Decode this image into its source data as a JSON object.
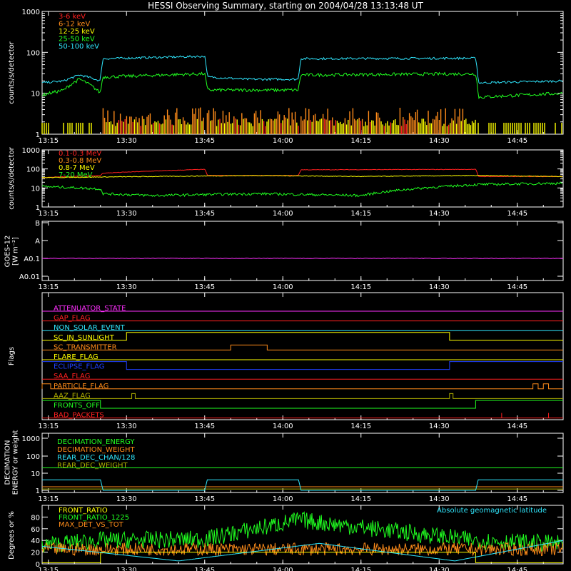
{
  "title": "HESSI Observing Summary, starting on 2004/04/28 13:13:48 UT",
  "time_ticks": [
    "13:15",
    "13:30",
    "13:45",
    "14:00",
    "14:15",
    "14:30",
    "14:45"
  ],
  "colors": {
    "background": "#000000",
    "axis": "#ffffff",
    "red": "#ff2020",
    "orange": "#ff8c1a",
    "yellow": "#ffff00",
    "green": "#20ff20",
    "cyan": "#30e8ff",
    "magenta": "#ff30ff",
    "blue": "#2040ff",
    "olive": "#b0b000"
  },
  "chart_data": [
    {
      "type": "line",
      "name": "light-curves-low",
      "ylabel": "counts/s/detector",
      "yscale": "log",
      "ylim": [
        1,
        1000
      ],
      "yticks": [
        "1",
        "10",
        "100",
        "1000"
      ],
      "x_range": [
        "13:13:48",
        "14:53:48"
      ],
      "legend": [
        "3-6 keV",
        "6-12 keV",
        "12-25 keV",
        "25-50 keV",
        "50-100 keV"
      ],
      "legend_colors": [
        "#ff2020",
        "#ff8c1a",
        "#ffff00",
        "#20ff20",
        "#30e8ff"
      ],
      "series": [
        {
          "name": "50-100 keV",
          "x": [
            "13:13:48",
            "13:18",
            "13:21",
            "13:25",
            "13:25:30",
            "13:45",
            "13:45:30",
            "13:53",
            "14:03",
            "14:03:30",
            "14:37",
            "14:37:30",
            "14:53:48"
          ],
          "values": [
            18,
            20,
            28,
            20,
            70,
            80,
            25,
            22,
            22,
            70,
            72,
            18,
            20
          ]
        },
        {
          "name": "25-50 keV",
          "x": [
            "13:13:48",
            "13:18",
            "13:21",
            "13:25",
            "13:25:30",
            "13:45",
            "13:45:30",
            "13:53",
            "14:03",
            "14:03:30",
            "14:37",
            "14:37:30",
            "14:53:48"
          ],
          "values": [
            9,
            12,
            22,
            10,
            25,
            30,
            12,
            12,
            12,
            28,
            30,
            8,
            10
          ]
        }
      ]
    },
    {
      "type": "line",
      "name": "light-curves-high",
      "ylabel": "counts/s/detector",
      "yscale": "log",
      "ylim": [
        1,
        1000
      ],
      "yticks": [
        "1",
        "10",
        "100",
        "1000"
      ],
      "legend": [
        "0.1-0.3 MeV",
        "0.3-0.8 MeV",
        "0.8-7 MeV",
        "7-20 MeV"
      ],
      "legend_colors": [
        "#ff2020",
        "#ff8c1a",
        "#ffff00",
        "#20ff20"
      ],
      "series": [
        {
          "name": "0.1-0.3 MeV",
          "x": [
            "13:13:48",
            "13:25",
            "13:25:30",
            "13:45",
            "13:45:30",
            "14:03",
            "14:03:30",
            "14:37",
            "14:37:30",
            "14:53:48"
          ],
          "values": [
            35,
            45,
            60,
            95,
            45,
            45,
            90,
            95,
            40,
            40
          ]
        },
        {
          "name": "0.8-7 MeV",
          "x": [
            "13:13:48",
            "13:35",
            "13:55",
            "14:15",
            "14:37",
            "14:53:48"
          ],
          "values": [
            35,
            40,
            45,
            40,
            45,
            40
          ]
        },
        {
          "name": "7-20 MeV",
          "x": [
            "13:13:48",
            "13:25",
            "13:25:30",
            "13:35",
            "13:55",
            "14:15",
            "14:37",
            "14:53:48"
          ],
          "values": [
            12,
            9,
            5,
            4,
            5,
            4,
            15,
            18
          ]
        }
      ]
    },
    {
      "type": "line",
      "name": "goes",
      "ylabel_lines": [
        "GOES-12",
        "[W m⁻²]"
      ],
      "yscale": "log",
      "ytick_labels": [
        "A0.01",
        "A0.1",
        "A",
        "B"
      ],
      "series": [
        {
          "name": "",
          "x": [
            "13:13:48",
            "14:53:48"
          ],
          "values": [
            "A0.1",
            "A0.1"
          ]
        }
      ]
    },
    {
      "type": "line",
      "name": "flags",
      "ylabel": "Flags",
      "flags": [
        {
          "label": "ATTENUATOR_STATE",
          "color": "#ff30ff"
        },
        {
          "label": "GAP_FLAG",
          "color": "#ff2020"
        },
        {
          "label": "NON_SOLAR_EVENT",
          "color": "#30e8ff"
        },
        {
          "label": "SC_IN_SUNLIGHT",
          "color": "#ffff00"
        },
        {
          "label": "SC_TRANSMITTER",
          "color": "#ff8c1a"
        },
        {
          "label": "FLARE_FLAG",
          "color": "#ffff00"
        },
        {
          "label": "ECLIPSE_FLAG",
          "color": "#2040ff"
        },
        {
          "label": "SAA_FLAG",
          "color": "#ff2020"
        },
        {
          "label": "PARTICLE_FLAG",
          "color": "#ff8c1a"
        },
        {
          "label": "AAZ_FLAG",
          "color": "#b0b000"
        },
        {
          "label": "FRONTS_OFF",
          "color": "#20ff20"
        },
        {
          "label": "BAD_PACKETS",
          "color": "#ff2020"
        }
      ]
    },
    {
      "type": "line",
      "name": "decimation",
      "ylabel_lines": [
        "DECIMATION",
        "ENERGY or weight"
      ],
      "yscale": "log",
      "yticks": [
        "1",
        "10",
        "100",
        "1000"
      ],
      "legend": [
        "DECIMATION_ENERGY",
        "DECIMATION_WEIGHT",
        "REAR_DEC_CHAN/128",
        "REAR_DEC_WEIGHT"
      ],
      "legend_colors": [
        "#20ff20",
        "#ff8c1a",
        "#30e8ff",
        "#b0b000"
      ],
      "series": [
        {
          "name": "REAR_DEC_CHAN/128",
          "x": [
            "13:13:48",
            "13:25",
            "13:25:30",
            "13:45",
            "13:45:30",
            "14:03",
            "14:03:30",
            "14:37",
            "14:37:30",
            "14:53:48"
          ],
          "values": [
            4,
            4,
            1,
            1,
            4,
            4,
            1,
            1,
            4,
            4
          ]
        }
      ]
    },
    {
      "type": "line",
      "name": "ratios",
      "ylabel": "Degrees or %",
      "ylim": [
        0,
        100
      ],
      "yticks": [
        "0",
        "20",
        "40",
        "60",
        "80"
      ],
      "legend": [
        "FRONT_RATIO",
        "FRONT_RATIO_1225",
        "MAX_DET_VS_TOT"
      ],
      "legend_colors": [
        "#ffff00",
        "#20ff20",
        "#ff8c1a"
      ],
      "annotation": "Absolute geomagnetic latitude",
      "series": [
        {
          "name": "FRONT_RATIO_1225",
          "x": [
            "13:13:48",
            "13:25",
            "13:45",
            "14:03",
            "14:37",
            "14:53:48"
          ],
          "values": [
            32,
            40,
            42,
            75,
            40,
            34
          ]
        },
        {
          "name": "MAX_DET_VS_TOT",
          "x": [
            "13:13:48",
            "14:53:48"
          ],
          "values": [
            25,
            25
          ]
        },
        {
          "name": "Absolute geomagnetic latitude",
          "x": [
            "13:13:48",
            "13:40",
            "14:07",
            "14:33",
            "14:53:48"
          ],
          "values": [
            30,
            5,
            35,
            5,
            40
          ]
        }
      ]
    }
  ]
}
